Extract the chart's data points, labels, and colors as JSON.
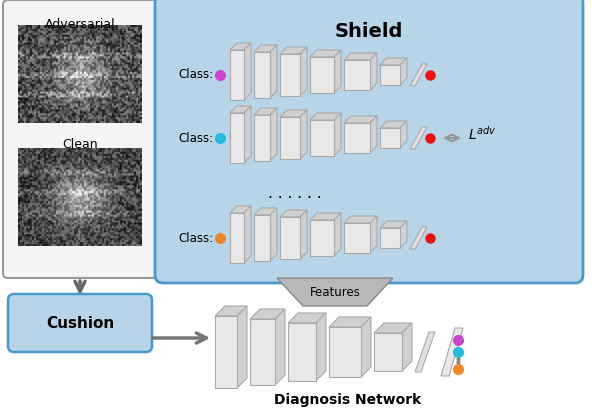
{
  "title": "Shield",
  "fig_width": 5.92,
  "fig_height": 4.18,
  "bg_color": "#ffffff",
  "shield_box_color": "#b8d4e8",
  "shield_box_edge": "#4a9ac9",
  "cushion_box_color": "#b8d4e8",
  "cushion_box_edge": "#4a9ac9",
  "xray_box_color": "#ffffff",
  "xray_box_edge": "#888888",
  "layer_face": "#e0e0e0",
  "layer_edge": "#aaaaaa",
  "layer_shadow": "#cccccc",
  "dot_colors": {
    "magenta": "#cc44cc",
    "cyan": "#22bbdd",
    "orange": "#ee8822",
    "red": "#ee1111"
  },
  "class_labels": [
    "Class:",
    "Class:",
    "Class:"
  ],
  "class_dot_colors": [
    "#cc44cc",
    "#22bbdd",
    "#ee8822"
  ],
  "shield_title": "Shield",
  "cushion_label": "Cushion",
  "features_label": "Features",
  "diag_label": "Diagnosis Network",
  "adversarial_label": "Adversarial",
  "clean_label": "Clean",
  "dots_row_colors": [
    "#cc44cc",
    "#22bbdd",
    "#666666",
    "#ee8822"
  ]
}
